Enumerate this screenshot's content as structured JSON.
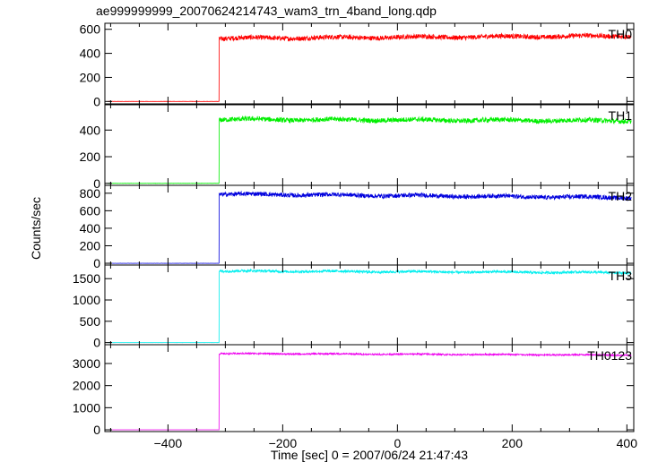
{
  "chart_data": {
    "type": "line",
    "title": "ae999999999_20070624214743_wam3_trn_4band_long.qdp",
    "xlabel": "Time [sec] 0 = 2007/06/24 21:47:43",
    "ylabel": "Counts/sec",
    "xlim": [
      -510,
      412
    ],
    "xticks": [
      -400,
      -200,
      0,
      200,
      400
    ],
    "xtick_labels": [
      "−400",
      "−200",
      "0",
      "200",
      "400"
    ],
    "onset_x": -311,
    "grid": false,
    "panels": [
      {
        "name": "TH0",
        "color": "#ff0000",
        "ylim": [
          -20,
          650
        ],
        "yticks": [
          0,
          200,
          400,
          600
        ],
        "pre_level": 0,
        "level_start": 525,
        "level_end": 545,
        "noise": 20
      },
      {
        "name": "TH1",
        "color": "#00ee00",
        "ylim": [
          -15,
          590
        ],
        "yticks": [
          0,
          200,
          400
        ],
        "pre_level": 0,
        "level_start": 480,
        "level_end": 470,
        "noise": 18
      },
      {
        "name": "TH2",
        "color": "#0000dd",
        "ylim": [
          -20,
          890
        ],
        "yticks": [
          0,
          200,
          400,
          600,
          800
        ],
        "pre_level": 0,
        "level_start": 790,
        "level_end": 750,
        "noise": 25
      },
      {
        "name": "TH3",
        "color": "#00eeee",
        "ylim": [
          -50,
          1820
        ],
        "yticks": [
          0,
          500,
          1000,
          1500
        ],
        "pre_level": 0,
        "level_start": 1680,
        "level_end": 1640,
        "noise": 30
      },
      {
        "name": "TH0123",
        "color": "#ee00ee",
        "ylim": [
          -80,
          3850
        ],
        "yticks": [
          0,
          1000,
          2000,
          3000
        ],
        "pre_level": 0,
        "level_start": 3450,
        "level_end": 3380,
        "noise": 35
      }
    ]
  }
}
